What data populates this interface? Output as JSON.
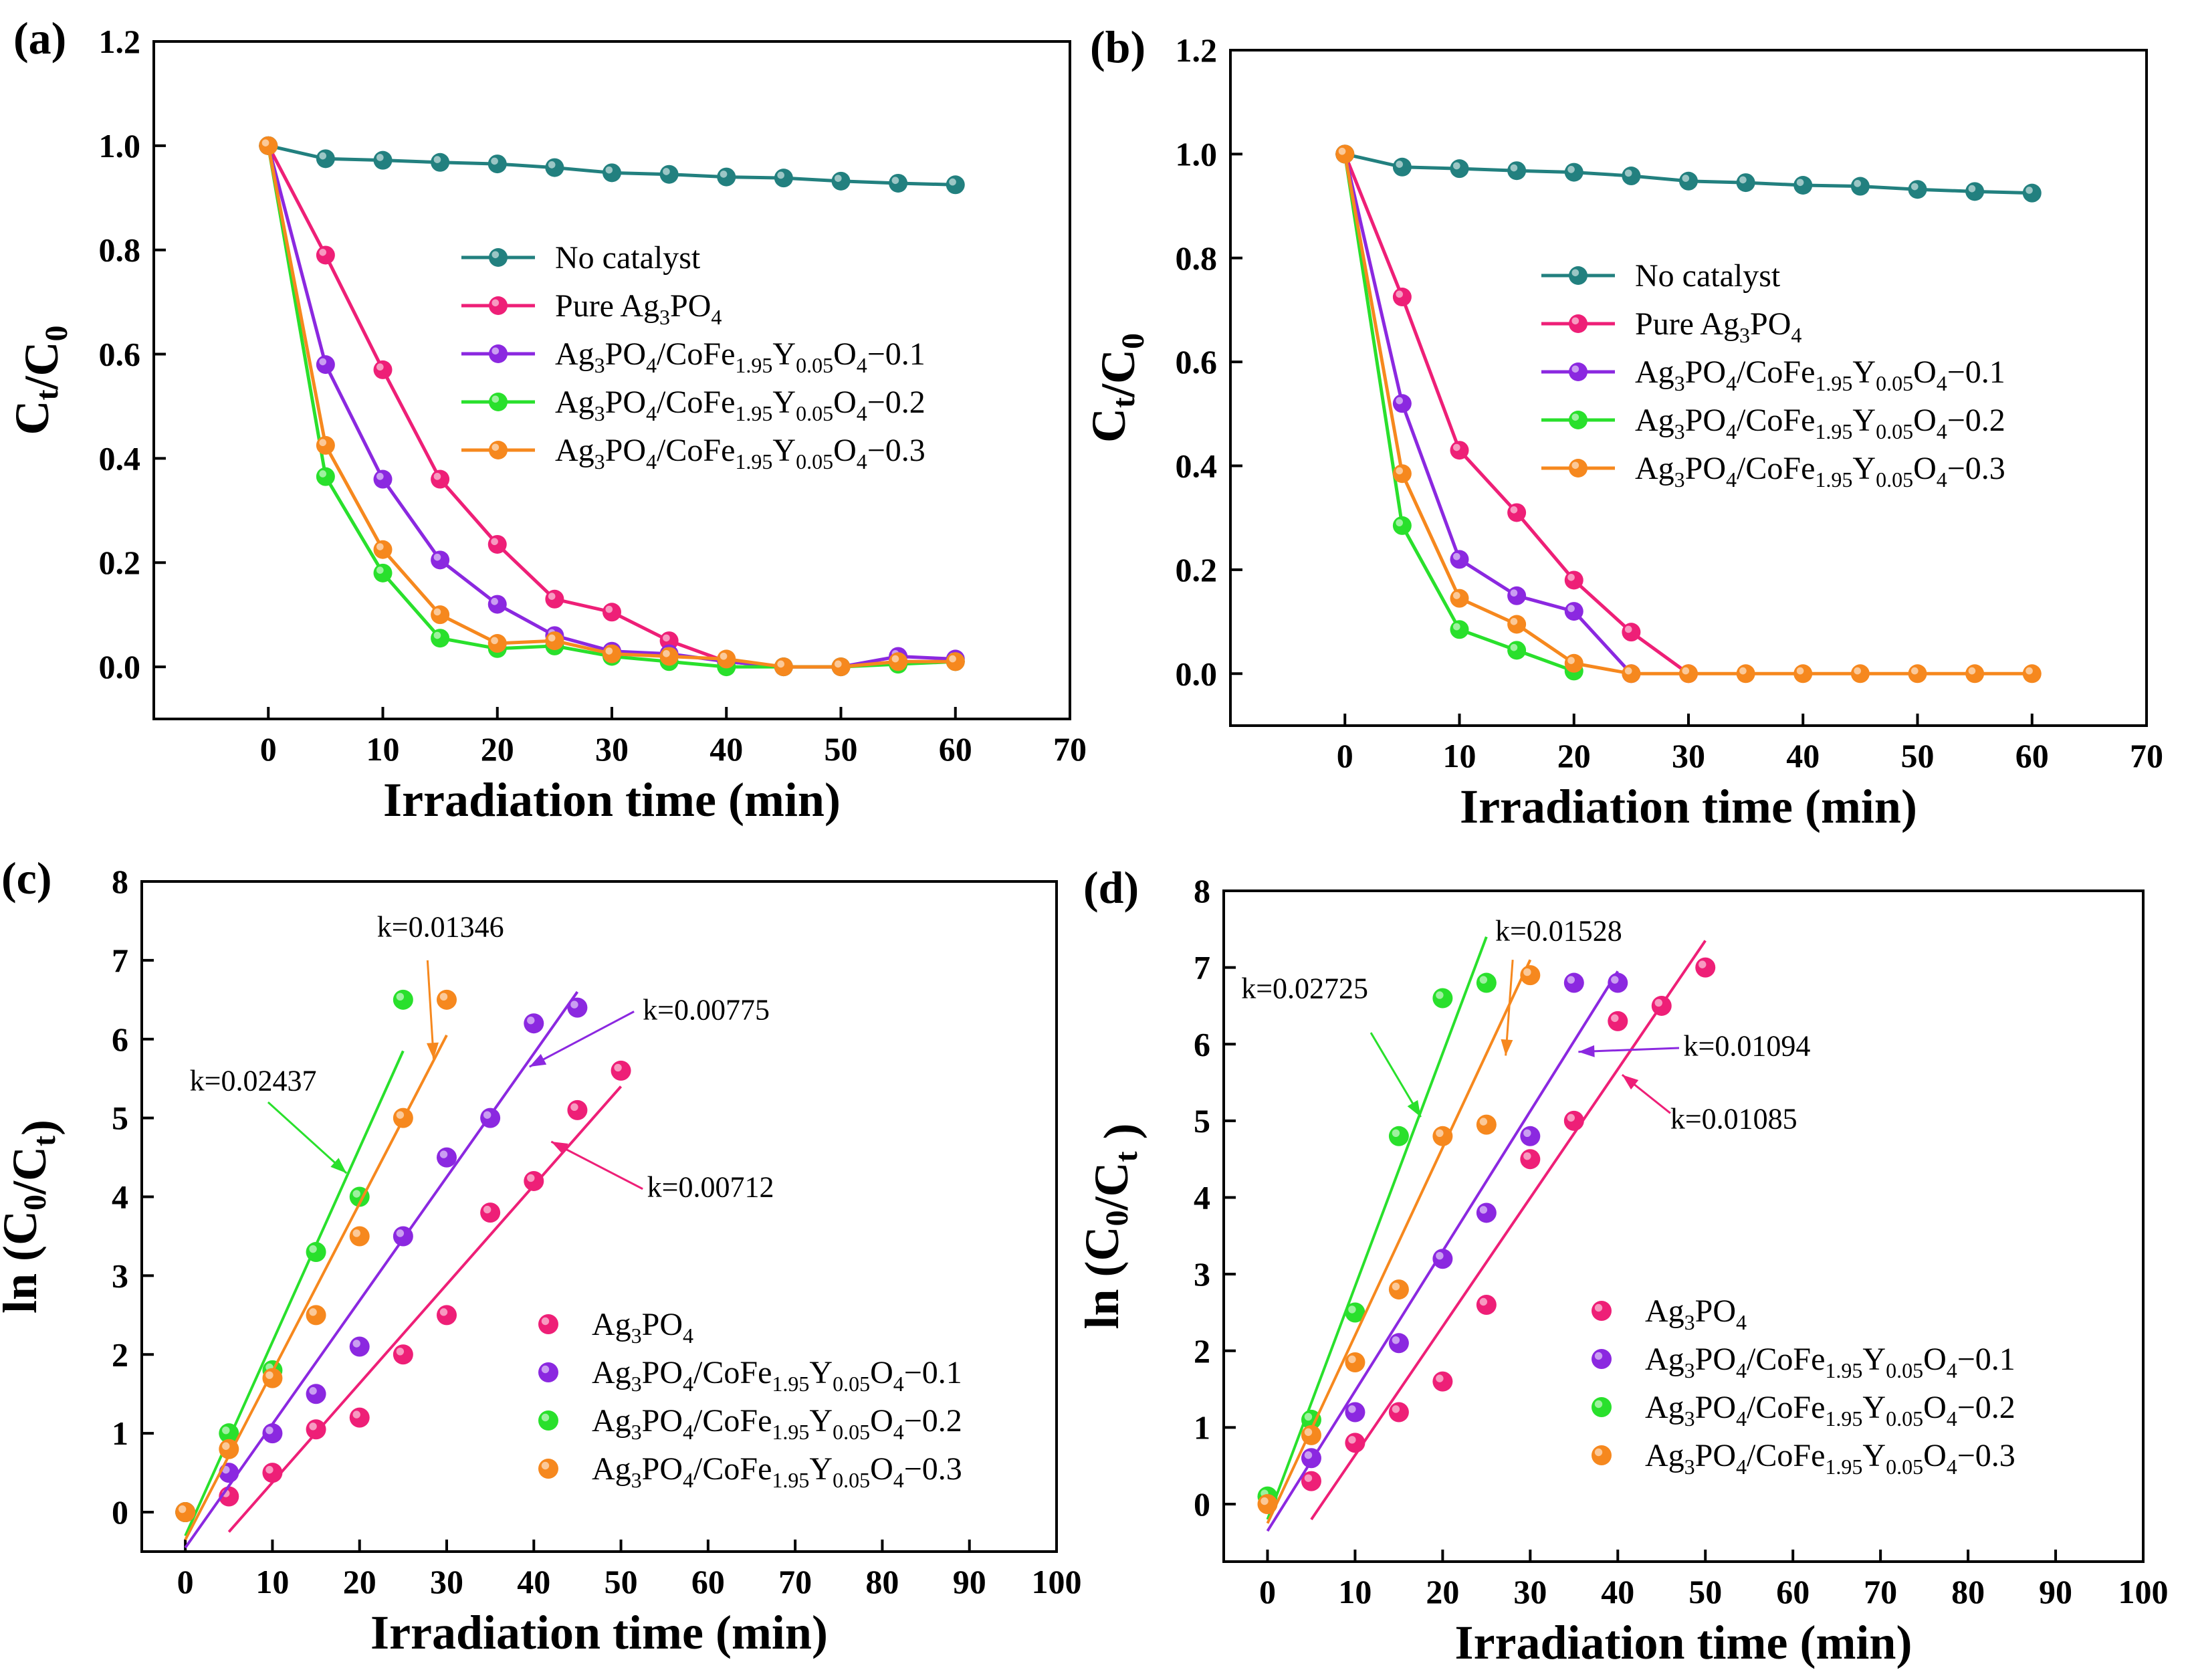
{
  "colors": {
    "No catalyst": "#22807f",
    "Pure Ag3PO4": "#ee1f77",
    "Ag3PO4": "#ee1f77",
    "-0.1": "#8b28e0",
    "-0.2": "#29e02c",
    "-0.3": "#f6881e"
  },
  "chart_data": [
    {
      "panel": "(a)",
      "type": "line",
      "xlabel": "Irradiation time (min)",
      "ylabel": "Ct/C0",
      "xlim": [
        -10,
        70
      ],
      "ylim": [
        -0.1,
        1.2
      ],
      "xticks": [
        0,
        10,
        20,
        30,
        40,
        50,
        60,
        70
      ],
      "yticks": [
        0.0,
        0.2,
        0.4,
        0.6,
        0.8,
        1.0,
        1.2
      ],
      "y_tick_decimals": 1,
      "grid": false,
      "legend_position": "center-right",
      "x": [
        0,
        5,
        10,
        15,
        20,
        25,
        30,
        35,
        40,
        45,
        50,
        55,
        60
      ],
      "series": [
        {
          "name": "No catalyst",
          "color_key": "No catalyst",
          "values": [
            1.0,
            0.975,
            0.972,
            0.968,
            0.965,
            0.958,
            0.948,
            0.945,
            0.94,
            0.938,
            0.932,
            0.928,
            0.925
          ]
        },
        {
          "name": "Pure Ag3PO4",
          "color_key": "Pure Ag3PO4",
          "values": [
            1.0,
            0.79,
            0.57,
            0.36,
            0.235,
            0.13,
            0.105,
            0.05,
            0.01,
            0.0,
            0.0,
            0.01,
            0.01
          ]
        },
        {
          "name": "Ag3PO4/CoFe1.95Y0.05O4-0.1",
          "color_key": "-0.1",
          "values": [
            1.0,
            0.58,
            0.36,
            0.205,
            0.12,
            0.06,
            0.03,
            0.025,
            0.01,
            0.0,
            0.0,
            0.02,
            0.015
          ]
        },
        {
          "name": "Ag3PO4/CoFe1.95Y0.05O4-0.2",
          "color_key": "-0.2",
          "values": [
            1.0,
            0.365,
            0.18,
            0.055,
            0.035,
            0.04,
            0.02,
            0.01,
            0.0,
            0.0,
            0.0,
            0.005,
            0.01
          ]
        },
        {
          "name": "Ag3PO4/CoFe1.95Y0.05O4-0.3",
          "color_key": "-0.3",
          "values": [
            1.0,
            0.425,
            0.225,
            0.1,
            0.045,
            0.05,
            0.025,
            0.02,
            0.015,
            0.0,
            0.0,
            0.01,
            0.01
          ]
        }
      ]
    },
    {
      "panel": "(b)",
      "type": "line",
      "xlabel": "Irradiation time (min)",
      "ylabel": "Ct/C0",
      "xlim": [
        -10,
        70
      ],
      "ylim": [
        -0.1,
        1.2
      ],
      "xticks": [
        0,
        10,
        20,
        30,
        40,
        50,
        60,
        70
      ],
      "yticks": [
        0.0,
        0.2,
        0.4,
        0.6,
        0.8,
        1.0,
        1.2
      ],
      "y_tick_decimals": 1,
      "grid": false,
      "legend_position": "center-right",
      "series": [
        {
          "name": "No catalyst",
          "color_key": "No catalyst",
          "x": [
            0,
            5,
            10,
            15,
            20,
            25,
            30,
            35,
            40,
            45,
            50,
            55,
            60
          ],
          "values": [
            1.0,
            0.975,
            0.972,
            0.968,
            0.965,
            0.958,
            0.948,
            0.945,
            0.94,
            0.938,
            0.932,
            0.928,
            0.925
          ]
        },
        {
          "name": "Pure Ag3PO4",
          "color_key": "Pure Ag3PO4",
          "x": [
            0,
            5,
            10,
            15,
            20,
            25,
            30
          ],
          "values": [
            1.0,
            0.725,
            0.43,
            0.31,
            0.18,
            0.08,
            0.0
          ]
        },
        {
          "name": "Ag3PO4/CoFe1.95Y0.05O4-0.1",
          "color_key": "-0.1",
          "x": [
            0,
            5,
            10,
            15,
            20,
            25
          ],
          "values": [
            1.0,
            0.52,
            0.22,
            0.15,
            0.12,
            0.0
          ]
        },
        {
          "name": "Ag3PO4/CoFe1.95Y0.05O4-0.2",
          "color_key": "-0.2",
          "x": [
            0,
            5,
            10,
            15,
            20
          ],
          "values": [
            1.0,
            0.285,
            0.085,
            0.045,
            0.005
          ]
        },
        {
          "name": "Ag3PO4/CoFe1.95Y0.05O4-0.3",
          "color_key": "-0.3",
          "x": [
            0,
            5,
            10,
            15,
            20,
            25,
            30,
            35,
            40,
            45,
            50,
            55,
            60
          ],
          "values": [
            1.0,
            0.385,
            0.145,
            0.095,
            0.02,
            0.0,
            0.0,
            0.0,
            0.0,
            0.0,
            0.0,
            0.0,
            0.0
          ]
        }
      ]
    },
    {
      "panel": "(c)",
      "type": "scatter",
      "xlabel": "Irradiation time (min)",
      "ylabel": "ln (C0/Ct)",
      "xlim": [
        -5,
        100
      ],
      "ylim": [
        -0.5,
        8
      ],
      "xticks": [
        0,
        10,
        20,
        30,
        40,
        50,
        60,
        70,
        80,
        90,
        100
      ],
      "yticks": [
        0,
        1,
        2,
        3,
        4,
        5,
        6,
        7,
        8
      ],
      "y_tick_decimals": 0,
      "grid": false,
      "legend_position": "bottom-right",
      "series": [
        {
          "name": "Ag3PO4",
          "color_key": "Ag3PO4",
          "x": [
            0,
            5,
            10,
            15,
            20,
            25,
            30,
            35,
            40,
            45,
            50
          ],
          "values": [
            0,
            0.2,
            0.5,
            1.05,
            1.2,
            2.0,
            2.5,
            3.8,
            4.2,
            5.1,
            5.6
          ],
          "fit": [
            [
              5,
              -0.25
            ],
            [
              50,
              5.4
            ]
          ]
        },
        {
          "name": "Ag3PO4/CoFe1.95Y0.05O4-0.1",
          "color_key": "-0.1",
          "x": [
            0,
            5,
            10,
            15,
            20,
            25,
            30,
            35,
            40,
            45
          ],
          "values": [
            0,
            0.5,
            1.0,
            1.5,
            2.1,
            3.5,
            4.5,
            5.0,
            6.2,
            6.4
          ],
          "fit": [
            [
              0,
              -0.45
            ],
            [
              45,
              6.6
            ]
          ]
        },
        {
          "name": "Ag3PO4/CoFe1.95Y0.05O4-0.2",
          "color_key": "-0.2",
          "x": [
            0,
            5,
            10,
            15,
            20,
            25
          ],
          "values": [
            0,
            1.0,
            1.8,
            3.3,
            4.0,
            6.5
          ],
          "fit": [
            [
              0,
              -0.3
            ],
            [
              25,
              5.85
            ]
          ]
        },
        {
          "name": "Ag3PO4/CoFe1.95Y0.05O4-0.3",
          "color_key": "-0.3",
          "x": [
            0,
            5,
            10,
            15,
            20,
            25,
            30
          ],
          "values": [
            0,
            0.8,
            1.7,
            2.5,
            3.5,
            5.0,
            6.5
          ],
          "fit": [
            [
              0,
              -0.35
            ],
            [
              30,
              6.05
            ]
          ]
        }
      ],
      "annotations": [
        {
          "text": "k=0.01346",
          "color_key": "-0.3",
          "tx": 22,
          "ty": 7.3,
          "ax": 27.8,
          "ay": 7.0,
          "hx": 28.5,
          "hy": 5.75
        },
        {
          "text": "k=0.00775",
          "color_key": "-0.1",
          "tx": 52.5,
          "ty": 6.25,
          "ax": 51.5,
          "ay": 6.35,
          "hx": 39.5,
          "hy": 5.65
        },
        {
          "text": "k=0.02437",
          "color_key": "-0.2",
          "tx": 0.5,
          "ty": 5.35,
          "ax": 9.5,
          "ay": 5.2,
          "hx": 18.5,
          "hy": 4.3
        },
        {
          "text": "k=0.00712",
          "color_key": "Ag3PO4",
          "tx": 53,
          "ty": 4.0,
          "ax": 52.5,
          "ay": 4.1,
          "hx": 42,
          "hy": 4.7
        }
      ]
    },
    {
      "panel": "(d)",
      "type": "scatter",
      "xlabel": "Irradiation time (min)",
      "ylabel": "ln (C0/Ct )",
      "xlim": [
        -5,
        100
      ],
      "ylim": [
        -0.75,
        8
      ],
      "xticks": [
        0,
        10,
        20,
        30,
        40,
        50,
        60,
        70,
        80,
        90,
        100
      ],
      "yticks": [
        0,
        1,
        2,
        3,
        4,
        5,
        6,
        7,
        8
      ],
      "y_tick_decimals": 0,
      "grid": false,
      "legend_position": "bottom-right",
      "series": [
        {
          "name": "Ag3PO4",
          "color_key": "Ag3PO4",
          "x": [
            5,
            10,
            15,
            20,
            25,
            30,
            35,
            40,
            45,
            50
          ],
          "values": [
            0.3,
            0.8,
            1.2,
            1.6,
            2.6,
            4.5,
            5.0,
            6.3,
            6.5,
            7.0
          ],
          "fit": [
            [
              5,
              -0.2
            ],
            [
              50,
              7.35
            ]
          ]
        },
        {
          "name": "Ag3PO4/CoFe1.95Y0.05O4-0.1",
          "color_key": "-0.1",
          "x": [
            5,
            10,
            15,
            20,
            25,
            30,
            35,
            40
          ],
          "values": [
            0.6,
            1.2,
            2.1,
            3.2,
            3.8,
            4.8,
            6.8,
            6.8
          ],
          "fit": [
            [
              0,
              -0.35
            ],
            [
              40,
              6.95
            ]
          ]
        },
        {
          "name": "Ag3PO4/CoFe1.95Y0.05O4-0.2",
          "color_key": "-0.2",
          "x": [
            0,
            5,
            10,
            15,
            20,
            25
          ],
          "values": [
            0.1,
            1.1,
            2.5,
            4.8,
            6.6,
            6.8
          ],
          "fit": [
            [
              0,
              -0.2
            ],
            [
              25,
              7.4
            ]
          ]
        },
        {
          "name": "Ag3PO4/CoFe1.95Y0.05O4-0.3",
          "color_key": "-0.3",
          "x": [
            0,
            5,
            10,
            15,
            20,
            25,
            30
          ],
          "values": [
            0,
            0.9,
            1.85,
            2.8,
            4.8,
            4.95,
            6.9
          ],
          "fit": [
            [
              0,
              -0.25
            ],
            [
              30,
              7.1
            ]
          ]
        }
      ],
      "annotations": [
        {
          "text": "k=0.01528",
          "color_key": "-0.3",
          "tx": 26,
          "ty": 7.35,
          "ax": 28.0,
          "ay": 7.1,
          "hx": 27.2,
          "hy": 5.85
        },
        {
          "text": "k=0.02725",
          "color_key": "-0.2",
          "tx": -3,
          "ty": 6.6,
          "ax": 11.8,
          "ay": 6.15,
          "hx": 17.5,
          "hy": 5.05
        },
        {
          "text": "k=0.01094",
          "color_key": "-0.1",
          "tx": 47.5,
          "ty": 5.85,
          "ax": 47.0,
          "ay": 5.95,
          "hx": 35.5,
          "hy": 5.9
        },
        {
          "text": "k=0.01085",
          "color_key": "Ag3PO4",
          "tx": 46,
          "ty": 4.9,
          "ax": 46.0,
          "ay": 5.1,
          "hx": 40.5,
          "hy": 5.6
        }
      ]
    }
  ]
}
